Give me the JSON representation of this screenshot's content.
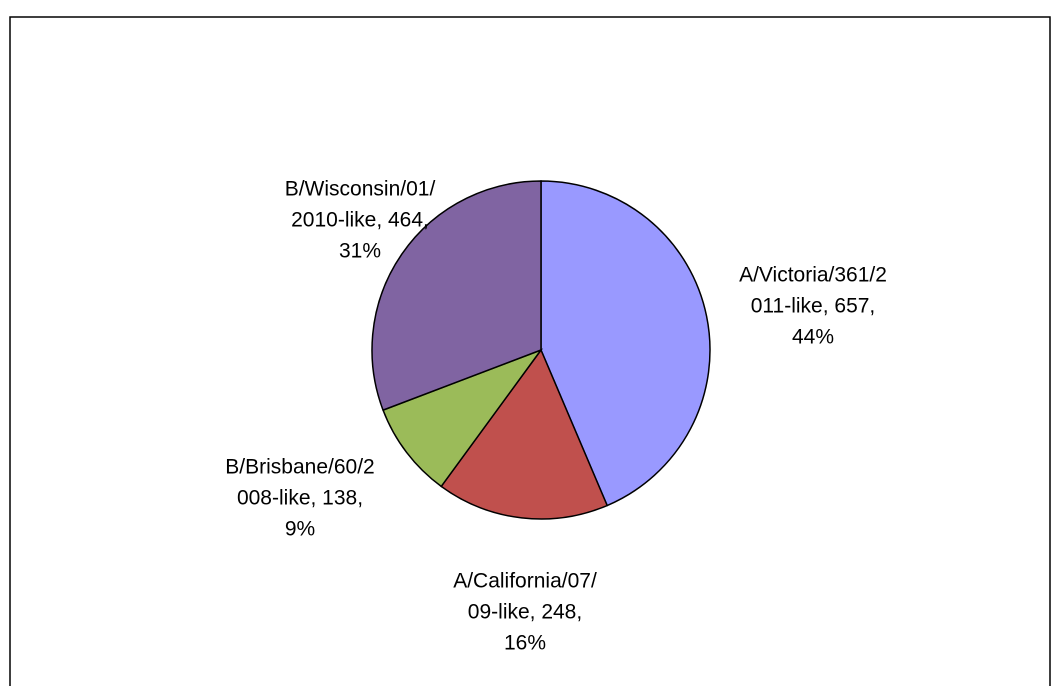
{
  "chart_data": {
    "type": "pie",
    "categories": [
      "A/Victoria/361/2011-like",
      "A/California/07/09-like",
      "B/Brisbane/60/2008-like",
      "B/Wisconsin/01/2010-like"
    ],
    "values": [
      657,
      248,
      138,
      464
    ],
    "colors": [
      "#9999ff",
      "#c0504d",
      "#9bbb59",
      "#8064a2"
    ],
    "data_labels": [
      [
        "A/Victoria/361/2",
        "011-like, 657,",
        "44%"
      ],
      [
        "A/California/07/",
        "09-like, 248,",
        "16%"
      ],
      [
        "B/Brisbane/60/2",
        "008-like, 138,",
        "9%"
      ],
      [
        "B/Wisconsin/01/",
        "2010-like, 464,",
        "31%"
      ]
    ]
  }
}
